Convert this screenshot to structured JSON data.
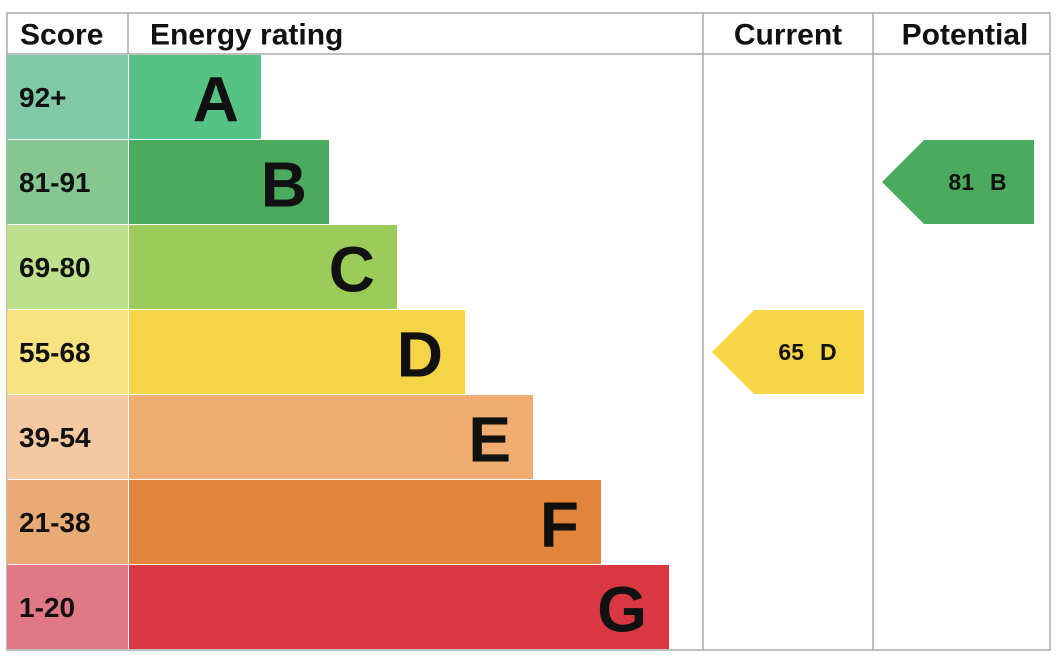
{
  "headers": {
    "score": "Score",
    "rating": "Energy rating",
    "current": "Current",
    "potential": "Potential"
  },
  "bands": [
    {
      "range": "92+",
      "letter": "A",
      "color": "#56c385",
      "range_color": "#80c8a6"
    },
    {
      "range": "81-91",
      "letter": "B",
      "color": "#4aaa5e",
      "range_color": "#86c690"
    },
    {
      "range": "69-80",
      "letter": "C",
      "color": "#9bcc5a",
      "range_color": "#bde08f"
    },
    {
      "range": "55-68",
      "letter": "D",
      "color": "#f6d448",
      "range_color": "#f9e380"
    },
    {
      "range": "39-54",
      "letter": "E",
      "color": "#efad71",
      "range_color": "#f4c9a1"
    },
    {
      "range": "21-38",
      "letter": "F",
      "color": "#e0853b",
      "range_color": "#e9ab76"
    },
    {
      "range": "1-20",
      "letter": "G",
      "color": "#d93843",
      "range_color": "#e07885"
    }
  ],
  "current": {
    "score": 65,
    "letter": "D"
  },
  "potential": {
    "score": 81,
    "letter": "B"
  }
}
